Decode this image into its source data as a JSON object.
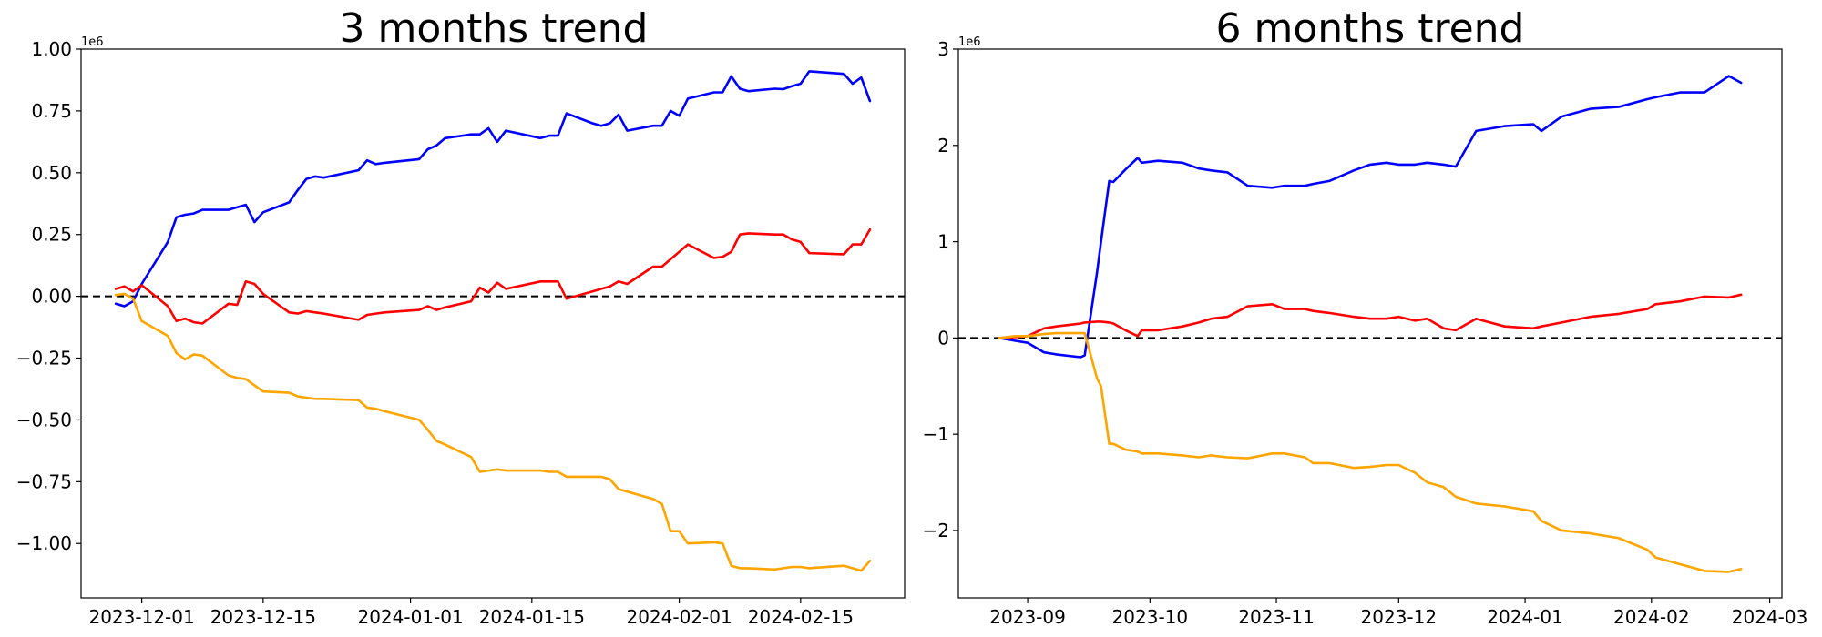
{
  "chart_data": [
    {
      "type": "line",
      "title": "3 months trend",
      "xlabel": "",
      "ylabel": "",
      "x_type": "date",
      "xlim": [
        "2023-11-24",
        "2024-02-27"
      ],
      "ylim": [
        -1.22,
        1.0
      ],
      "y_exponent_label": "1e6",
      "x_tick_labels": [
        "2023-12-01",
        "2023-12-15",
        "2024-01-01",
        "2024-01-15",
        "2024-02-01",
        "2024-02-15"
      ],
      "y_ticks": [
        -1.0,
        -0.75,
        -0.5,
        -0.25,
        0.0,
        0.25,
        0.5,
        0.75,
        1.0
      ],
      "y_tick_labels": [
        "−1.00",
        "−0.75",
        "−0.50",
        "−0.25",
        "0.00",
        "0.25",
        "0.50",
        "0.75",
        "1.00"
      ],
      "reference_line": {
        "y": 0,
        "style": "dashed",
        "color": "#000000"
      },
      "grid": false,
      "series": [
        {
          "color": "#0000ff",
          "x": [
            "2023-11-28",
            "2023-11-29",
            "2023-11-30",
            "2023-12-01",
            "2023-12-04",
            "2023-12-05",
            "2023-12-06",
            "2023-12-07",
            "2023-12-08",
            "2023-12-11",
            "2023-12-12",
            "2023-12-13",
            "2023-12-14",
            "2023-12-15",
            "2023-12-18",
            "2023-12-19",
            "2023-12-20",
            "2023-12-21",
            "2023-12-22",
            "2023-12-26",
            "2023-12-27",
            "2023-12-28",
            "2023-12-29",
            "2024-01-02",
            "2024-01-03",
            "2024-01-04",
            "2024-01-05",
            "2024-01-08",
            "2024-01-09",
            "2024-01-10",
            "2024-01-11",
            "2024-01-12",
            "2024-01-16",
            "2024-01-17",
            "2024-01-18",
            "2024-01-19",
            "2024-01-22",
            "2024-01-23",
            "2024-01-24",
            "2024-01-25",
            "2024-01-26",
            "2024-01-29",
            "2024-01-30",
            "2024-01-31",
            "2024-02-01",
            "2024-02-02",
            "2024-02-05",
            "2024-02-06",
            "2024-02-07",
            "2024-02-08",
            "2024-02-09",
            "2024-02-12",
            "2024-02-13",
            "2024-02-14",
            "2024-02-15",
            "2024-02-16",
            "2024-02-20",
            "2024-02-21",
            "2024-02-22",
            "2024-02-23"
          ],
          "values": [
            -0.03,
            -0.04,
            -0.02,
            0.05,
            0.22,
            0.32,
            0.33,
            0.335,
            0.35,
            0.35,
            0.36,
            0.37,
            0.3,
            0.34,
            0.38,
            0.43,
            0.475,
            0.485,
            0.48,
            0.51,
            0.55,
            0.535,
            0.54,
            0.555,
            0.595,
            0.61,
            0.64,
            0.655,
            0.655,
            0.68,
            0.625,
            0.67,
            0.64,
            0.65,
            0.65,
            0.74,
            0.7,
            0.69,
            0.7,
            0.735,
            0.67,
            0.69,
            0.69,
            0.75,
            0.73,
            0.8,
            0.825,
            0.825,
            0.89,
            0.84,
            0.83,
            0.84,
            0.838,
            0.85,
            0.86,
            0.91,
            0.9,
            0.86,
            0.885,
            0.79
          ]
        },
        {
          "color": "#ff0000",
          "x": [
            "2023-11-28",
            "2023-11-29",
            "2023-11-30",
            "2023-12-01",
            "2023-12-04",
            "2023-12-05",
            "2023-12-06",
            "2023-12-07",
            "2023-12-08",
            "2023-12-11",
            "2023-12-12",
            "2023-12-13",
            "2023-12-14",
            "2023-12-15",
            "2023-12-18",
            "2023-12-19",
            "2023-12-20",
            "2023-12-21",
            "2023-12-22",
            "2023-12-26",
            "2023-12-27",
            "2023-12-28",
            "2023-12-29",
            "2024-01-02",
            "2024-01-03",
            "2024-01-04",
            "2024-01-05",
            "2024-01-08",
            "2024-01-09",
            "2024-01-10",
            "2024-01-11",
            "2024-01-12",
            "2024-01-16",
            "2024-01-17",
            "2024-01-18",
            "2024-01-19",
            "2024-01-22",
            "2024-01-23",
            "2024-01-24",
            "2024-01-25",
            "2024-01-26",
            "2024-01-29",
            "2024-01-30",
            "2024-01-31",
            "2024-02-01",
            "2024-02-02",
            "2024-02-05",
            "2024-02-06",
            "2024-02-07",
            "2024-02-08",
            "2024-02-09",
            "2024-02-12",
            "2024-02-13",
            "2024-02-14",
            "2024-02-15",
            "2024-02-16",
            "2024-02-20",
            "2024-02-21",
            "2024-02-22",
            "2024-02-23"
          ],
          "values": [
            0.03,
            0.04,
            0.02,
            0.045,
            -0.04,
            -0.1,
            -0.09,
            -0.105,
            -0.11,
            -0.03,
            -0.035,
            0.06,
            0.05,
            0.01,
            -0.065,
            -0.07,
            -0.06,
            -0.065,
            -0.07,
            -0.095,
            -0.075,
            -0.07,
            -0.065,
            -0.055,
            -0.04,
            -0.055,
            -0.045,
            -0.02,
            0.035,
            0.015,
            0.055,
            0.03,
            0.06,
            0.06,
            0.06,
            -0.01,
            0.02,
            0.03,
            0.04,
            0.06,
            0.05,
            0.12,
            0.12,
            0.15,
            0.18,
            0.21,
            0.155,
            0.16,
            0.18,
            0.25,
            0.255,
            0.25,
            0.25,
            0.23,
            0.22,
            0.175,
            0.17,
            0.21,
            0.21,
            0.27
          ]
        },
        {
          "color": "#ffa500",
          "x": [
            "2023-11-28",
            "2023-11-29",
            "2023-11-30",
            "2023-12-01",
            "2023-12-04",
            "2023-12-05",
            "2023-12-06",
            "2023-12-07",
            "2023-12-08",
            "2023-12-11",
            "2023-12-12",
            "2023-12-13",
            "2023-12-14",
            "2023-12-15",
            "2023-12-18",
            "2023-12-19",
            "2023-12-20",
            "2023-12-21",
            "2023-12-22",
            "2023-12-26",
            "2023-12-27",
            "2023-12-28",
            "2023-12-29",
            "2024-01-02",
            "2024-01-03",
            "2024-01-04",
            "2024-01-05",
            "2024-01-08",
            "2024-01-09",
            "2024-01-10",
            "2024-01-11",
            "2024-01-12",
            "2024-01-16",
            "2024-01-17",
            "2024-01-18",
            "2024-01-19",
            "2024-01-22",
            "2024-01-23",
            "2024-01-24",
            "2024-01-25",
            "2024-01-26",
            "2024-01-29",
            "2024-01-30",
            "2024-01-31",
            "2024-02-01",
            "2024-02-02",
            "2024-02-05",
            "2024-02-06",
            "2024-02-07",
            "2024-02-08",
            "2024-02-09",
            "2024-02-12",
            "2024-02-13",
            "2024-02-14",
            "2024-02-15",
            "2024-02-16",
            "2024-02-20",
            "2024-02-21",
            "2024-02-22",
            "2024-02-23"
          ],
          "values": [
            0.005,
            0.01,
            -0.01,
            -0.1,
            -0.16,
            -0.23,
            -0.255,
            -0.235,
            -0.24,
            -0.32,
            -0.33,
            -0.335,
            -0.36,
            -0.385,
            -0.39,
            -0.405,
            -0.41,
            -0.415,
            -0.415,
            -0.42,
            -0.45,
            -0.455,
            -0.465,
            -0.5,
            -0.54,
            -0.585,
            -0.6,
            -0.65,
            -0.71,
            -0.705,
            -0.7,
            -0.705,
            -0.705,
            -0.71,
            -0.71,
            -0.73,
            -0.73,
            -0.73,
            -0.74,
            -0.78,
            -0.79,
            -0.82,
            -0.84,
            -0.95,
            -0.95,
            -1.0,
            -0.995,
            -1.0,
            -1.09,
            -1.1,
            -1.1,
            -1.105,
            -1.1,
            -1.095,
            -1.095,
            -1.1,
            -1.09,
            -1.1,
            -1.11,
            -1.07
          ]
        }
      ]
    },
    {
      "type": "line",
      "title": "6 months trend",
      "xlabel": "",
      "ylabel": "",
      "x_type": "date",
      "xlim": [
        "2023-08-15",
        "2024-03-04"
      ],
      "ylim": [
        -2.7,
        3.0
      ],
      "y_exponent_label": "1e6",
      "x_tick_labels": [
        "2023-09",
        "2023-10",
        "2023-11",
        "2023-12",
        "2024-01",
        "2024-02",
        "2024-03"
      ],
      "y_ticks": [
        -2,
        -1,
        0,
        1,
        2,
        3
      ],
      "y_tick_labels": [
        "−2",
        "−1",
        "0",
        "1",
        "2",
        "3"
      ],
      "reference_line": {
        "y": 0,
        "style": "dashed",
        "color": "#000000"
      },
      "grid": false,
      "series": [
        {
          "color": "#0000ff",
          "x": [
            "2023-08-25",
            "2023-08-29",
            "2023-09-01",
            "2023-09-05",
            "2023-09-08",
            "2023-09-12",
            "2023-09-14",
            "2023-09-15",
            "2023-09-18",
            "2023-09-19",
            "2023-09-21",
            "2023-09-22",
            "2023-09-25",
            "2023-09-28",
            "2023-09-29",
            "2023-10-03",
            "2023-10-09",
            "2023-10-13",
            "2023-10-16",
            "2023-10-20",
            "2023-10-25",
            "2023-10-31",
            "2023-11-03",
            "2023-11-08",
            "2023-11-10",
            "2023-11-14",
            "2023-11-20",
            "2023-11-24",
            "2023-11-28",
            "2023-12-01",
            "2023-12-05",
            "2023-12-08",
            "2023-12-12",
            "2023-12-15",
            "2023-12-20",
            "2023-12-27",
            "2024-01-03",
            "2024-01-05",
            "2024-01-10",
            "2024-01-17",
            "2024-01-24",
            "2024-01-31",
            "2024-02-02",
            "2024-02-08",
            "2024-02-14",
            "2024-02-20",
            "2024-02-23"
          ],
          "values": [
            0.0,
            -0.03,
            -0.05,
            -0.15,
            -0.17,
            -0.19,
            -0.2,
            -0.18,
            0.68,
            1.0,
            1.63,
            1.62,
            1.75,
            1.87,
            1.82,
            1.84,
            1.82,
            1.76,
            1.74,
            1.72,
            1.58,
            1.56,
            1.58,
            1.58,
            1.6,
            1.63,
            1.74,
            1.8,
            1.82,
            1.8,
            1.8,
            1.82,
            1.8,
            1.78,
            2.15,
            2.2,
            2.22,
            2.15,
            2.3,
            2.38,
            2.4,
            2.48,
            2.5,
            2.55,
            2.55,
            2.72,
            2.65
          ]
        },
        {
          "color": "#ff0000",
          "x": [
            "2023-08-25",
            "2023-08-29",
            "2023-09-01",
            "2023-09-05",
            "2023-09-08",
            "2023-09-12",
            "2023-09-14",
            "2023-09-15",
            "2023-09-18",
            "2023-09-19",
            "2023-09-21",
            "2023-09-22",
            "2023-09-25",
            "2023-09-28",
            "2023-09-29",
            "2023-10-03",
            "2023-10-09",
            "2023-10-13",
            "2023-10-16",
            "2023-10-20",
            "2023-10-25",
            "2023-10-31",
            "2023-11-03",
            "2023-11-08",
            "2023-11-10",
            "2023-11-14",
            "2023-11-20",
            "2023-11-24",
            "2023-11-28",
            "2023-12-01",
            "2023-12-05",
            "2023-12-08",
            "2023-12-12",
            "2023-12-15",
            "2023-12-20",
            "2023-12-27",
            "2024-01-03",
            "2024-01-05",
            "2024-01-10",
            "2024-01-17",
            "2024-01-24",
            "2024-01-31",
            "2024-02-02",
            "2024-02-08",
            "2024-02-14",
            "2024-02-20",
            "2024-02-23"
          ],
          "values": [
            0.0,
            0.01,
            0.02,
            0.1,
            0.12,
            0.14,
            0.15,
            0.16,
            0.17,
            0.17,
            0.16,
            0.15,
            0.08,
            0.02,
            0.08,
            0.08,
            0.12,
            0.16,
            0.2,
            0.22,
            0.33,
            0.35,
            0.3,
            0.3,
            0.28,
            0.26,
            0.22,
            0.2,
            0.2,
            0.22,
            0.18,
            0.2,
            0.1,
            0.08,
            0.2,
            0.12,
            0.1,
            0.12,
            0.16,
            0.22,
            0.25,
            0.3,
            0.35,
            0.38,
            0.43,
            0.42,
            0.45
          ]
        },
        {
          "color": "#ffa500",
          "x": [
            "2023-08-25",
            "2023-08-29",
            "2023-09-01",
            "2023-09-05",
            "2023-09-08",
            "2023-09-12",
            "2023-09-14",
            "2023-09-15",
            "2023-09-18",
            "2023-09-19",
            "2023-09-21",
            "2023-09-22",
            "2023-09-25",
            "2023-09-28",
            "2023-09-29",
            "2023-10-03",
            "2023-10-09",
            "2023-10-13",
            "2023-10-16",
            "2023-10-20",
            "2023-10-25",
            "2023-10-31",
            "2023-11-03",
            "2023-11-08",
            "2023-11-10",
            "2023-11-14",
            "2023-11-20",
            "2023-11-24",
            "2023-11-28",
            "2023-12-01",
            "2023-12-05",
            "2023-12-08",
            "2023-12-12",
            "2023-12-15",
            "2023-12-20",
            "2023-12-27",
            "2024-01-03",
            "2024-01-05",
            "2024-01-10",
            "2024-01-17",
            "2024-01-24",
            "2024-01-31",
            "2024-02-02",
            "2024-02-08",
            "2024-02-14",
            "2024-02-20",
            "2024-02-23"
          ],
          "values": [
            0.0,
            0.02,
            0.02,
            0.04,
            0.05,
            0.05,
            0.05,
            0.05,
            -0.42,
            -0.5,
            -1.1,
            -1.1,
            -1.16,
            -1.18,
            -1.2,
            -1.2,
            -1.22,
            -1.24,
            -1.22,
            -1.24,
            -1.25,
            -1.2,
            -1.2,
            -1.24,
            -1.3,
            -1.3,
            -1.35,
            -1.34,
            -1.32,
            -1.32,
            -1.4,
            -1.5,
            -1.55,
            -1.65,
            -1.72,
            -1.75,
            -1.8,
            -1.9,
            -2.0,
            -2.03,
            -2.08,
            -2.2,
            -2.28,
            -2.35,
            -2.42,
            -2.43,
            -2.4
          ]
        }
      ]
    }
  ]
}
